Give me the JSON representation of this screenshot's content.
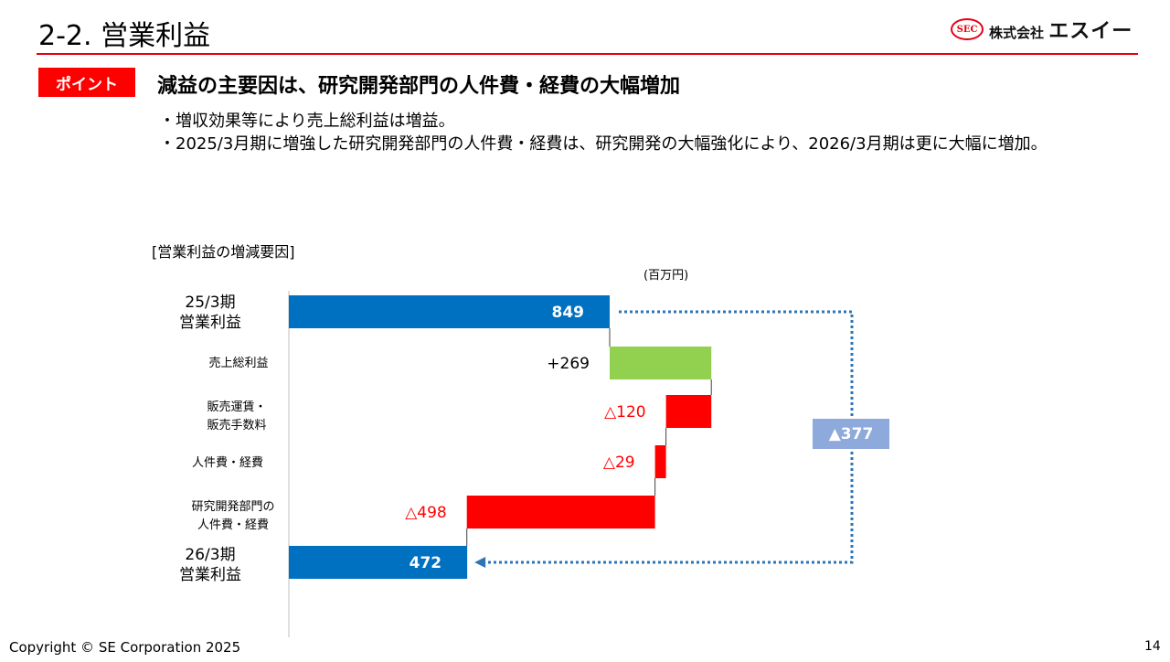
{
  "header": {
    "title": "2-2. 営業利益",
    "logo_mark": "SEC",
    "logo_company": "株式会社",
    "logo_name": "エスイー"
  },
  "point": {
    "badge": "ポイント",
    "headline": "減益の主要因は、研究開発部門の人件費・経費の大幅増加"
  },
  "bullets": [
    "増収効果等により売上総利益は増益。",
    "2025/3月期に増強した研究開発部門の人件費・経費は、研究開発の大幅強化により、2026/3月期は更に大幅に増加。"
  ],
  "chart_caption": "[営業利益の増減要因]",
  "unit": "(百万円)",
  "categories": {
    "start_l1": "25/3期",
    "start_l2": "営業利益",
    "gross": "売上総利益",
    "sga_l1": "販売運賃・",
    "sga_l2": "販売手数料",
    "personnel": "人件費・経費",
    "rd_l1": "研究開発部門の",
    "rd_l2": "人件費・経費",
    "end_l1": "26/3期",
    "end_l2": "営業利益"
  },
  "chart_data": {
    "type": "bar",
    "subtype": "waterfall-horizontal",
    "title": "[営業利益の増減要因]",
    "unit": "(百万円)",
    "categories": [
      "25/3期 営業利益",
      "売上総利益",
      "販売運賃・販売手数料",
      "人件費・経費",
      "研究開発部門の人件費・経費",
      "26/3期 営業利益"
    ],
    "values": [
      849,
      269,
      -120,
      -29,
      -498,
      472
    ],
    "labels": [
      "849",
      "+269",
      "△120",
      "△29",
      "△498",
      "472"
    ],
    "kinds": [
      "total",
      "increase",
      "decrease",
      "decrease",
      "decrease",
      "total"
    ],
    "net_change": {
      "value": -377,
      "label": "▲377"
    },
    "colors": {
      "total": "#0070c0",
      "increase": "#92d050",
      "decrease": "#ff0000",
      "net_change": "#8ea9db"
    }
  },
  "footer": {
    "copyright": "Copyright © SE Corporation 2025",
    "page": "14"
  }
}
